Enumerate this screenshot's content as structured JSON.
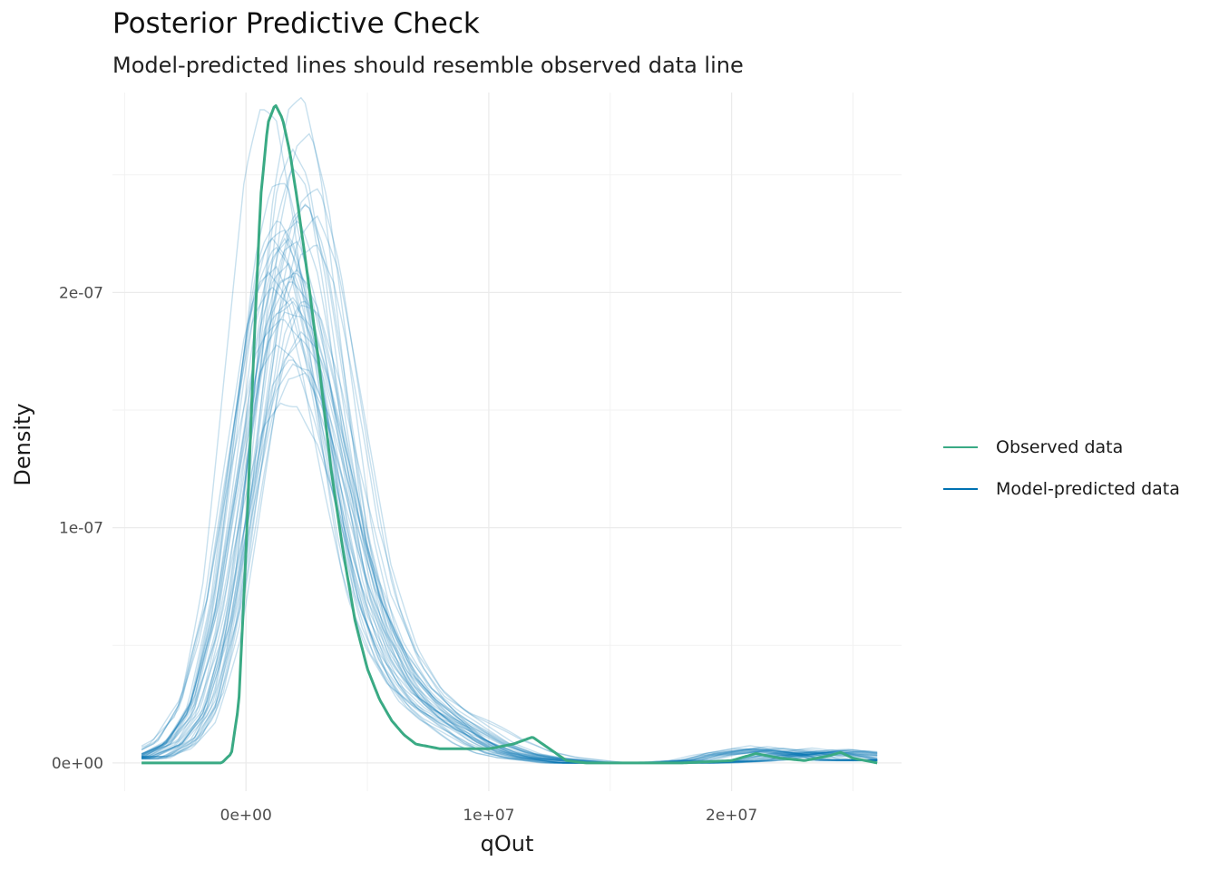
{
  "chart_data": {
    "type": "line",
    "title": "Posterior Predictive Check",
    "subtitle": "Model-predicted lines should resemble observed data line",
    "xlabel": "qOut",
    "ylabel": "Density",
    "xlim": [
      -5500000,
      27000000
    ],
    "ylim": [
      -1.2e-08,
      2.85e-07
    ],
    "x_ticks": [
      {
        "value": 0,
        "label": "0e+00"
      },
      {
        "value": 10000000,
        "label": "1e+07"
      },
      {
        "value": 20000000,
        "label": "2e+07"
      }
    ],
    "y_ticks": [
      {
        "value": 0,
        "label": "0e+00"
      },
      {
        "value": 1e-07,
        "label": "1e-07"
      },
      {
        "value": 2e-07,
        "label": "2e-07"
      }
    ],
    "grid": true,
    "legend_position": "right",
    "series": [
      {
        "name": "Observed data",
        "color": "#3aaa84",
        "x": [
          -4300000,
          -2000000,
          -1000000,
          -600000,
          -300000,
          0,
          300000,
          600000,
          900000,
          1200000,
          1500000,
          1800000,
          2100000,
          2500000,
          3000000,
          3500000,
          4000000,
          4500000,
          5000000,
          5500000,
          6000000,
          6500000,
          7000000,
          8000000,
          9000000,
          10000000,
          11000000,
          11800000,
          12500000,
          13200000,
          14000000,
          16000000,
          18000000,
          20000000,
          21000000,
          22000000,
          23000000,
          24000000,
          24500000,
          25000000,
          26000000
        ],
        "y": [
          0,
          0,
          0,
          4e-09,
          2.5e-08,
          9e-08,
          1.7e-07,
          2.4e-07,
          2.72e-07,
          2.8e-07,
          2.74e-07,
          2.6e-07,
          2.4e-07,
          2.1e-07,
          1.7e-07,
          1.25e-07,
          9e-08,
          6e-08,
          4e-08,
          2.7e-08,
          1.8e-08,
          1.2e-08,
          8e-09,
          6e-09,
          6e-09,
          6e-09,
          8e-09,
          1.1e-08,
          6e-09,
          1e-09,
          0,
          0,
          0,
          1e-09,
          4e-09,
          2e-09,
          1e-09,
          3e-09,
          4.5e-09,
          2e-09,
          0
        ]
      },
      {
        "name": "Model-predicted data",
        "color": "#0072b2",
        "x": [
          -4300000,
          -3000000,
          -2000000,
          -1000000,
          0,
          800000,
          1500000,
          2200000,
          3000000,
          4000000,
          5000000,
          6000000,
          7000000,
          8000000,
          9000000,
          10000000,
          11000000,
          12000000,
          13000000,
          14000000,
          16000000,
          18000000,
          20000000,
          21000000,
          22000000,
          23000000,
          24000000,
          25000000,
          26000000
        ],
        "y": [
          2e-09,
          8e-09,
          2.2e-08,
          6e-08,
          1.25e-07,
          1.75e-07,
          1.95e-07,
          1.95e-07,
          1.7e-07,
          1.2e-07,
          7.2e-08,
          4.5e-08,
          2.9e-08,
          2e-08,
          1.4e-08,
          8e-09,
          4e-09,
          2e-09,
          1e-09,
          0,
          0,
          0,
          1e-09,
          3e-09,
          4e-09,
          5e-09,
          4e-09,
          3e-09,
          1e-09
        ]
      }
    ]
  }
}
